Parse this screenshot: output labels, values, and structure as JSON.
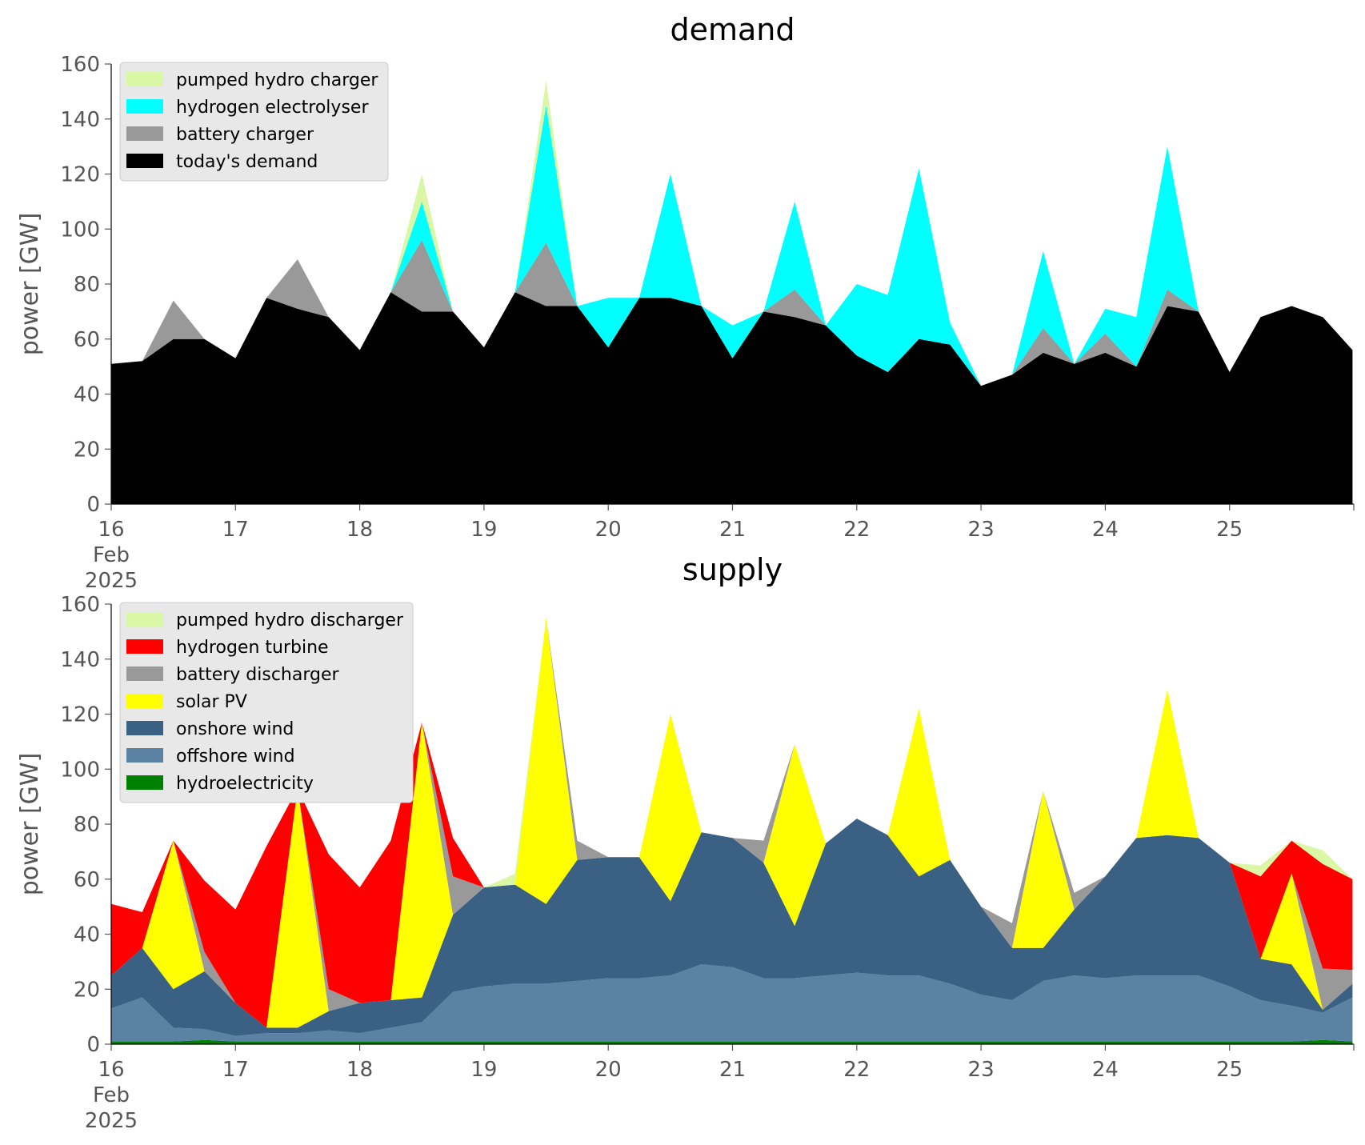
{
  "x_ticks": [
    {
      "day": 16,
      "text": [
        "16",
        "Feb",
        "2025"
      ]
    },
    {
      "day": 17,
      "text": [
        "17"
      ]
    },
    {
      "day": 18,
      "text": [
        "18"
      ]
    },
    {
      "day": 19,
      "text": [
        "19"
      ]
    },
    {
      "day": 20,
      "text": [
        "20"
      ]
    },
    {
      "day": 21,
      "text": [
        "21"
      ]
    },
    {
      "day": 22,
      "text": [
        "22"
      ]
    },
    {
      "day": 23,
      "text": [
        "23"
      ]
    },
    {
      "day": 24,
      "text": [
        "24"
      ]
    },
    {
      "day": 25,
      "text": [
        "25"
      ]
    }
  ],
  "chart_data": [
    {
      "type": "area",
      "title": "demand",
      "ylabel": "power [GW]",
      "xlim": [
        "2025-02-16",
        "2025-02-26"
      ],
      "ylim": [
        0,
        160
      ],
      "yticks": [
        0,
        20,
        40,
        60,
        80,
        100,
        120,
        140,
        160
      ],
      "grid": false,
      "legend_position": "top-left",
      "stacked": true,
      "x": [
        16.0,
        16.25,
        16.5,
        16.75,
        17.0,
        17.25,
        17.5,
        17.75,
        18.0,
        18.25,
        18.5,
        18.75,
        19.0,
        19.25,
        19.5,
        19.75,
        20.0,
        20.25,
        20.5,
        20.75,
        21.0,
        21.25,
        21.5,
        21.75,
        22.0,
        22.25,
        22.5,
        22.75,
        23.0,
        23.25,
        23.5,
        23.75,
        24.0,
        24.25,
        24.5,
        24.75,
        25.0,
        25.25,
        25.5,
        25.75,
        25.99
      ],
      "series": [
        {
          "name": "today's demand",
          "color": "#000000",
          "values": [
            51,
            52,
            60,
            60,
            53,
            75,
            71,
            68,
            56,
            77,
            70,
            70,
            57,
            77,
            72,
            72,
            57,
            75,
            75,
            72,
            53,
            70,
            68,
            65,
            54,
            48,
            60,
            58,
            43,
            47,
            55,
            51,
            55,
            50,
            72,
            70,
            48,
            68,
            72,
            68,
            56
          ]
        },
        {
          "name": "battery charger",
          "color": "#999999",
          "values": [
            0,
            0,
            14,
            0,
            0,
            0,
            18,
            0,
            0,
            0,
            26,
            0,
            0,
            0,
            23,
            0,
            0,
            0,
            0,
            0,
            0,
            0,
            10,
            0,
            0,
            0,
            0,
            0,
            0,
            0,
            9,
            0,
            7,
            0,
            6,
            0,
            0,
            0,
            0,
            0,
            0
          ]
        },
        {
          "name": "hydrogen electrolyser",
          "color": "#00ffff",
          "values": [
            0,
            0,
            0,
            0,
            0,
            0,
            0,
            0,
            0,
            0,
            14,
            0,
            0,
            0,
            50,
            0,
            18,
            0,
            45,
            0,
            12,
            0,
            32,
            0,
            26,
            28,
            62,
            8,
            0,
            0,
            28,
            0,
            9,
            18,
            52,
            0,
            0,
            0,
            0,
            0,
            0
          ]
        },
        {
          "name": "pumped hydro charger",
          "color": "#d9f7a5",
          "values": [
            0,
            0,
            0,
            0,
            0,
            0,
            0,
            0,
            0,
            0,
            10,
            0,
            0,
            0,
            9,
            0,
            0,
            0,
            0,
            0,
            0,
            0,
            0,
            0,
            0,
            0,
            0,
            0,
            0,
            0,
            0,
            0,
            0,
            0,
            0,
            0,
            0,
            0,
            0,
            0,
            0
          ]
        }
      ]
    },
    {
      "type": "area",
      "title": "supply",
      "ylabel": "power [GW]",
      "xlim": [
        "2025-02-16",
        "2025-02-26"
      ],
      "ylim": [
        0,
        160
      ],
      "yticks": [
        0,
        20,
        40,
        60,
        80,
        100,
        120,
        140,
        160
      ],
      "grid": false,
      "legend_position": "top-left",
      "stacked": true,
      "x": [
        16.0,
        16.25,
        16.5,
        16.75,
        17.0,
        17.25,
        17.5,
        17.75,
        18.0,
        18.25,
        18.5,
        18.75,
        19.0,
        19.25,
        19.5,
        19.75,
        20.0,
        20.25,
        20.5,
        20.75,
        21.0,
        21.25,
        21.5,
        21.75,
        22.0,
        22.25,
        22.5,
        22.75,
        23.0,
        23.25,
        23.5,
        23.75,
        24.0,
        24.25,
        24.5,
        24.75,
        25.0,
        25.25,
        25.5,
        25.75,
        25.99
      ],
      "series": [
        {
          "name": "hydroelectricity",
          "color": "#008000",
          "values": [
            1,
            1,
            1,
            1.5,
            1,
            1,
            1,
            1,
            1,
            1,
            1,
            1,
            1,
            1,
            1,
            1,
            1,
            1,
            1,
            1,
            1,
            1,
            1,
            1,
            1,
            1,
            1,
            1,
            1,
            1,
            1,
            1,
            1,
            1,
            1,
            1,
            1,
            1,
            1,
            1.5,
            1
          ]
        },
        {
          "name": "offshore wind",
          "color": "#5b81a3",
          "values": [
            12,
            16,
            5,
            4,
            2,
            3,
            3,
            4,
            3,
            5,
            7,
            18,
            20,
            21,
            21,
            22,
            23,
            23,
            24,
            28,
            27,
            23,
            23,
            24,
            25,
            24,
            24,
            21,
            17,
            15,
            22,
            24,
            23,
            24,
            24,
            24,
            20,
            15,
            13,
            10,
            16
          ]
        },
        {
          "name": "onshore wind",
          "color": "#3a6183",
          "values": [
            12,
            18,
            14,
            21,
            12,
            2,
            2,
            7,
            11,
            10,
            9,
            28,
            36,
            36,
            29,
            44,
            44,
            44,
            27,
            48,
            47,
            42,
            19,
            48,
            56,
            51,
            36,
            45,
            32,
            19,
            12,
            24,
            37,
            50,
            51,
            50,
            45,
            15,
            15,
            1,
            5
          ]
        },
        {
          "name": "solar PV",
          "color": "#ffff00",
          "values": [
            0,
            0,
            54,
            0,
            0,
            0,
            87,
            0,
            0,
            0,
            100,
            0,
            0,
            0,
            104,
            0,
            0,
            0,
            68,
            0,
            0,
            0,
            66,
            0,
            0,
            0,
            61,
            0,
            0,
            0,
            57,
            0,
            0,
            0,
            53,
            0,
            0,
            0,
            33,
            0,
            0
          ]
        },
        {
          "name": "battery discharger",
          "color": "#999999",
          "values": [
            0,
            0,
            0,
            7,
            0,
            0,
            0,
            8,
            0,
            0,
            0,
            14,
            0,
            0,
            0,
            7,
            0,
            0,
            0,
            0,
            0,
            8,
            0,
            0,
            0,
            0,
            0,
            0,
            0,
            9,
            0,
            6,
            0,
            0,
            0,
            0,
            0,
            0,
            0,
            15,
            5
          ]
        },
        {
          "name": "hydrogen turbine",
          "color": "#ff0000",
          "values": [
            26,
            13,
            0,
            26,
            34,
            66,
            0,
            49,
            42,
            58,
            0,
            14,
            0,
            0,
            0,
            0,
            0,
            0,
            0,
            0,
            0,
            0,
            0,
            0,
            0,
            0,
            0,
            0,
            0,
            0,
            0,
            0,
            0,
            0,
            0,
            0,
            0,
            30,
            12,
            38,
            33
          ]
        },
        {
          "name": "pumped hydro discharger",
          "color": "#d9f7a5",
          "values": [
            0,
            0,
            0,
            0,
            0,
            0,
            0,
            0,
            0,
            0,
            0,
            0,
            0,
            4,
            0,
            0,
            0,
            0,
            0,
            0,
            0,
            0,
            0,
            0,
            0,
            0,
            0,
            0,
            0,
            0,
            0,
            0,
            0,
            0,
            0,
            0,
            0,
            4,
            0,
            5,
            0
          ]
        }
      ]
    }
  ]
}
